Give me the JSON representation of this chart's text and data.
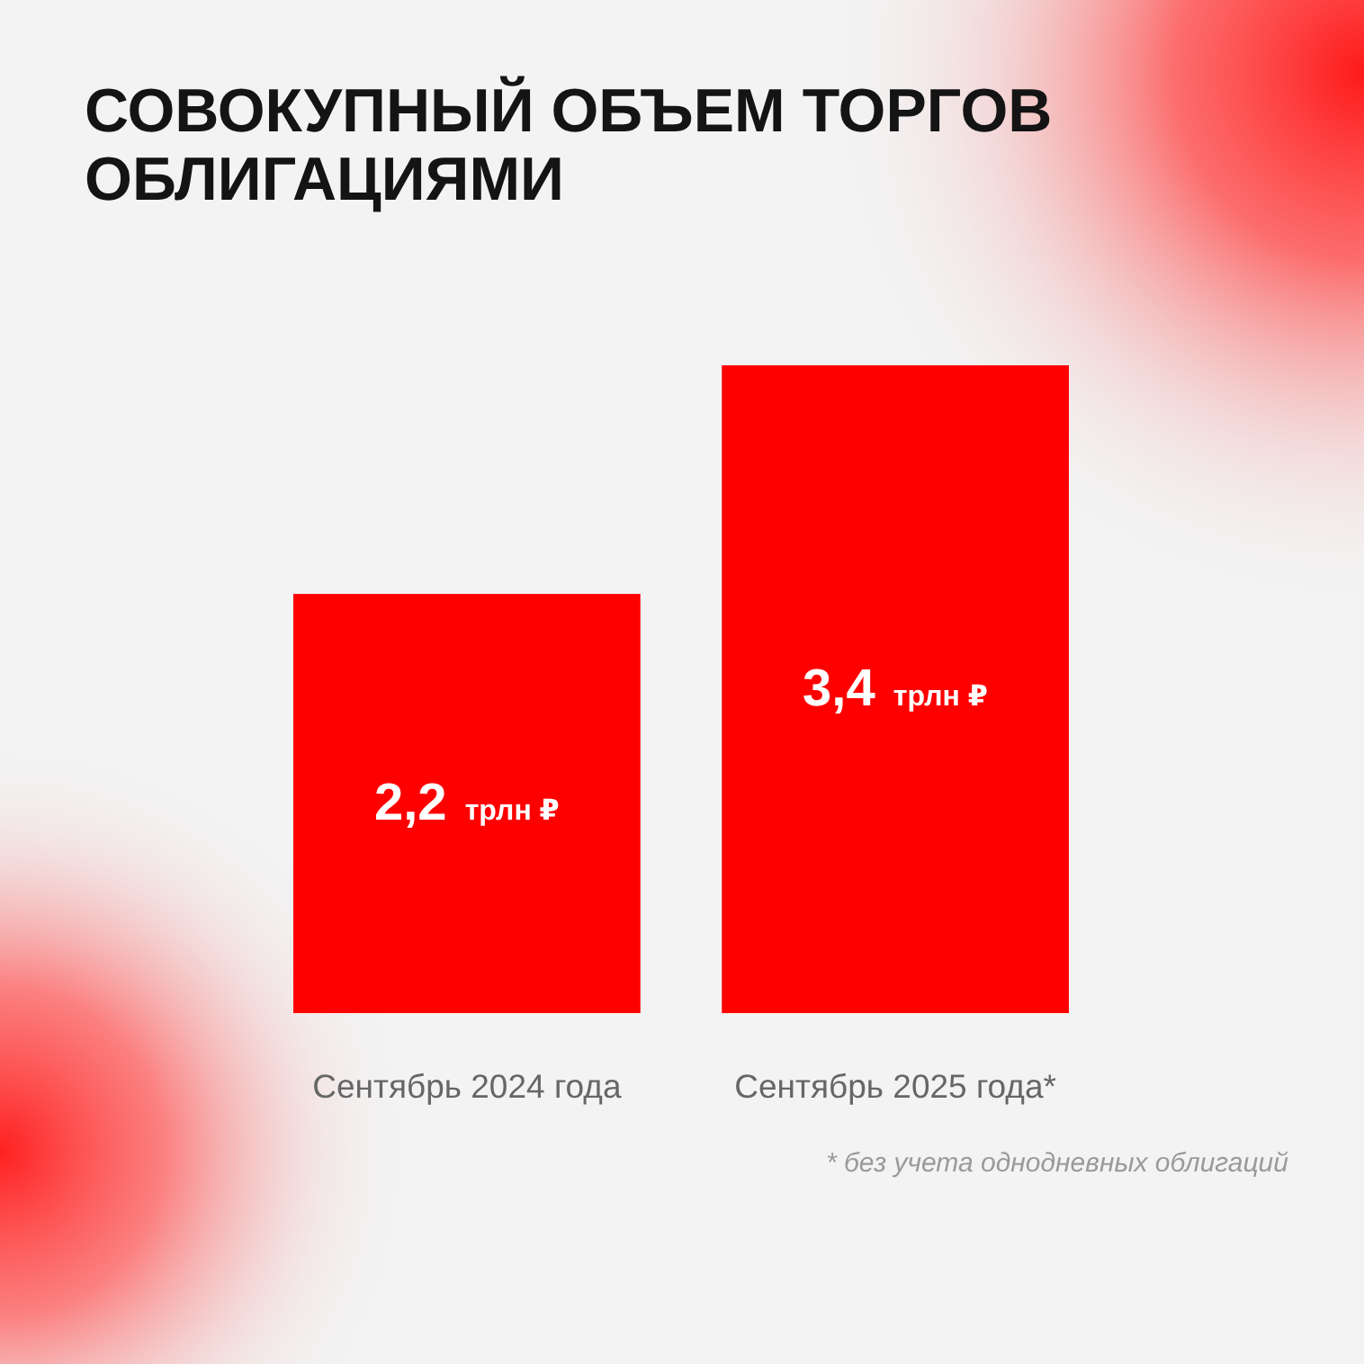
{
  "chart_data": {
    "type": "bar",
    "title": "СОВОКУПНЫЙ ОБЪЕМ ТОРГОВ ОБЛИГАЦИЯМИ",
    "categories": [
      "Сентябрь 2024 года",
      "Сентябрь 2025 года*"
    ],
    "values": [
      2.2,
      3.4
    ],
    "color": "#ff0000",
    "value_labels": [
      "2,2 трлн ₽",
      "3,4 трлн ₽"
    ],
    "tick_labels": "x",
    "annotations": [
      "* без учета однодневных облигаций"
    ]
  }
}
